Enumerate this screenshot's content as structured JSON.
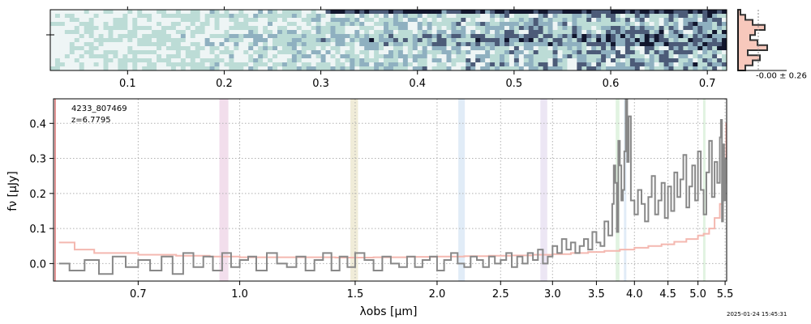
{
  "chart_data": {
    "type": "line",
    "title": "",
    "object_id": "4233_807469",
    "redshift": "z=6.7795",
    "timestamp": "2025-01-24 15:45:31",
    "xlabel": "λobs [μm]",
    "ylabel": "fν [μJy]",
    "xlim": [
      0.52,
      5.53
    ],
    "ylim": [
      -0.05,
      0.47
    ],
    "grid": true,
    "x_ticks": [
      {
        "value": 0.7,
        "label": "0.7"
      },
      {
        "value": 1.0,
        "label": "1.0"
      },
      {
        "value": 1.5,
        "label": "1.5"
      },
      {
        "value": 2.0,
        "label": "2.0"
      },
      {
        "value": 2.5,
        "label": "2.5"
      },
      {
        "value": 3.0,
        "label": "3.0"
      },
      {
        "value": 3.5,
        "label": "3.5"
      },
      {
        "value": 4.0,
        "label": "4.0"
      },
      {
        "value": 4.5,
        "label": "4.5"
      },
      {
        "value": 5.0,
        "label": "5.0"
      },
      {
        "value": 5.5,
        "label": "5.5"
      }
    ],
    "y_ticks": [
      {
        "value": 0.0,
        "label": "0.0"
      },
      {
        "value": 0.1,
        "label": "0.1"
      },
      {
        "value": 0.2,
        "label": "0.2"
      },
      {
        "value": 0.3,
        "label": "0.3"
      },
      {
        "value": 0.4,
        "label": "0.4"
      }
    ],
    "emission_bands": [
      {
        "center": 0.946,
        "width": 0.03,
        "color": "#d9a0c8"
      },
      {
        "center": 1.495,
        "width": 0.04,
        "color": "#d4c890"
      },
      {
        "center": 2.18,
        "width": 0.05,
        "color": "#a8c8e8"
      },
      {
        "center": 2.91,
        "width": 0.07,
        "color": "#c8b8e0"
      },
      {
        "center": 3.77,
        "width": 0.05,
        "color": "#a8dca8"
      },
      {
        "center": 3.87,
        "width": 0.03,
        "color": "#a8c8e8"
      },
      {
        "center": 5.11,
        "width": 0.04,
        "color": "#a8dca8"
      }
    ],
    "series": [
      {
        "name": "flux",
        "color": "#888888",
        "x": [
          0.53,
          0.55,
          0.58,
          0.61,
          0.64,
          0.67,
          0.7,
          0.73,
          0.76,
          0.79,
          0.82,
          0.85,
          0.88,
          0.91,
          0.94,
          0.97,
          1.0,
          1.03,
          1.06,
          1.1,
          1.14,
          1.18,
          1.22,
          1.26,
          1.3,
          1.34,
          1.38,
          1.42,
          1.46,
          1.5,
          1.55,
          1.6,
          1.65,
          1.7,
          1.75,
          1.8,
          1.85,
          1.9,
          1.95,
          2.0,
          2.05,
          2.1,
          2.15,
          2.2,
          2.25,
          2.3,
          2.35,
          2.4,
          2.45,
          2.5,
          2.55,
          2.6,
          2.65,
          2.7,
          2.75,
          2.8,
          2.85,
          2.9,
          2.95,
          3.0,
          3.05,
          3.1,
          3.15,
          3.2,
          3.25,
          3.3,
          3.35,
          3.4,
          3.45,
          3.5,
          3.55,
          3.6,
          3.65,
          3.7,
          3.72,
          3.74,
          3.76,
          3.78,
          3.8,
          3.82,
          3.84,
          3.86,
          3.88,
          3.9,
          3.92,
          3.95,
          4.0,
          4.05,
          4.1,
          4.15,
          4.2,
          4.25,
          4.3,
          4.35,
          4.4,
          4.45,
          4.5,
          4.55,
          4.6,
          4.65,
          4.7,
          4.75,
          4.8,
          4.85,
          4.9,
          4.95,
          5.0,
          5.05,
          5.1,
          5.15,
          5.2,
          5.25,
          5.3,
          5.35,
          5.4,
          5.42,
          5.44,
          5.46,
          5.48,
          5.5
        ],
        "y": [
          0.0,
          -0.02,
          0.01,
          -0.03,
          0.02,
          -0.01,
          0.01,
          -0.02,
          0.02,
          -0.03,
          0.03,
          -0.01,
          0.02,
          -0.02,
          0.03,
          -0.01,
          0.01,
          0.02,
          -0.02,
          0.03,
          0.0,
          -0.01,
          0.02,
          -0.02,
          0.01,
          0.03,
          -0.02,
          0.02,
          -0.01,
          0.03,
          0.01,
          -0.02,
          0.02,
          0.0,
          -0.01,
          0.02,
          -0.01,
          0.01,
          0.02,
          -0.02,
          0.01,
          0.03,
          0.0,
          -0.01,
          0.02,
          0.01,
          -0.01,
          0.02,
          0.0,
          0.01,
          0.03,
          -0.01,
          0.02,
          0.0,
          0.03,
          0.01,
          0.04,
          0.0,
          0.02,
          0.05,
          0.03,
          0.07,
          0.04,
          0.06,
          0.03,
          0.05,
          0.07,
          0.04,
          0.09,
          0.06,
          0.05,
          0.12,
          0.08,
          0.17,
          0.28,
          0.23,
          0.09,
          0.35,
          0.28,
          0.18,
          0.21,
          0.32,
          0.47,
          0.29,
          0.42,
          0.18,
          0.14,
          0.21,
          0.17,
          0.12,
          0.19,
          0.25,
          0.14,
          0.18,
          0.23,
          0.13,
          0.22,
          0.15,
          0.26,
          0.19,
          0.24,
          0.31,
          0.16,
          0.22,
          0.28,
          0.18,
          0.32,
          0.21,
          0.14,
          0.26,
          0.35,
          0.19,
          0.29,
          0.23,
          0.36,
          0.41,
          0.12,
          0.34,
          0.18,
          0.3
        ]
      },
      {
        "name": "uncertainty",
        "color": "#f4b8b0",
        "x": [
          0.53,
          0.56,
          0.6,
          0.7,
          0.8,
          0.9,
          1.0,
          1.2,
          1.4,
          1.6,
          1.8,
          2.0,
          2.2,
          2.4,
          2.6,
          2.8,
          3.0,
          3.2,
          3.4,
          3.6,
          3.8,
          4.0,
          4.2,
          4.4,
          4.6,
          4.8,
          5.0,
          5.1,
          5.2,
          5.3,
          5.4,
          5.45,
          5.5,
          5.52
        ],
        "y": [
          0.06,
          0.04,
          0.03,
          0.025,
          0.022,
          0.02,
          0.018,
          0.018,
          0.017,
          0.018,
          0.019,
          0.02,
          0.021,
          0.022,
          0.023,
          0.025,
          0.027,
          0.03,
          0.033,
          0.036,
          0.04,
          0.045,
          0.05,
          0.055,
          0.062,
          0.07,
          0.08,
          0.085,
          0.1,
          0.13,
          0.17,
          0.23,
          0.3,
          0.4
        ]
      }
    ],
    "spectrum_2d": {
      "x_ticks": [
        {
          "value": 0.1,
          "label": "0.1"
        },
        {
          "value": 0.2,
          "label": "0.2"
        },
        {
          "value": 0.3,
          "label": "0.3"
        },
        {
          "value": 0.4,
          "label": "0.4"
        },
        {
          "value": 0.5,
          "label": "0.5"
        },
        {
          "value": 0.6,
          "label": "0.6"
        },
        {
          "value": 0.7,
          "label": "0.7"
        }
      ],
      "xlim": [
        0.02,
        0.72
      ],
      "colormap": [
        "#eef5f5",
        "#bcdcd6",
        "#8fb0c0",
        "#4c5b78",
        "#12162e"
      ]
    },
    "histogram": {
      "label": "-0.00 ± 0.26"
    }
  }
}
